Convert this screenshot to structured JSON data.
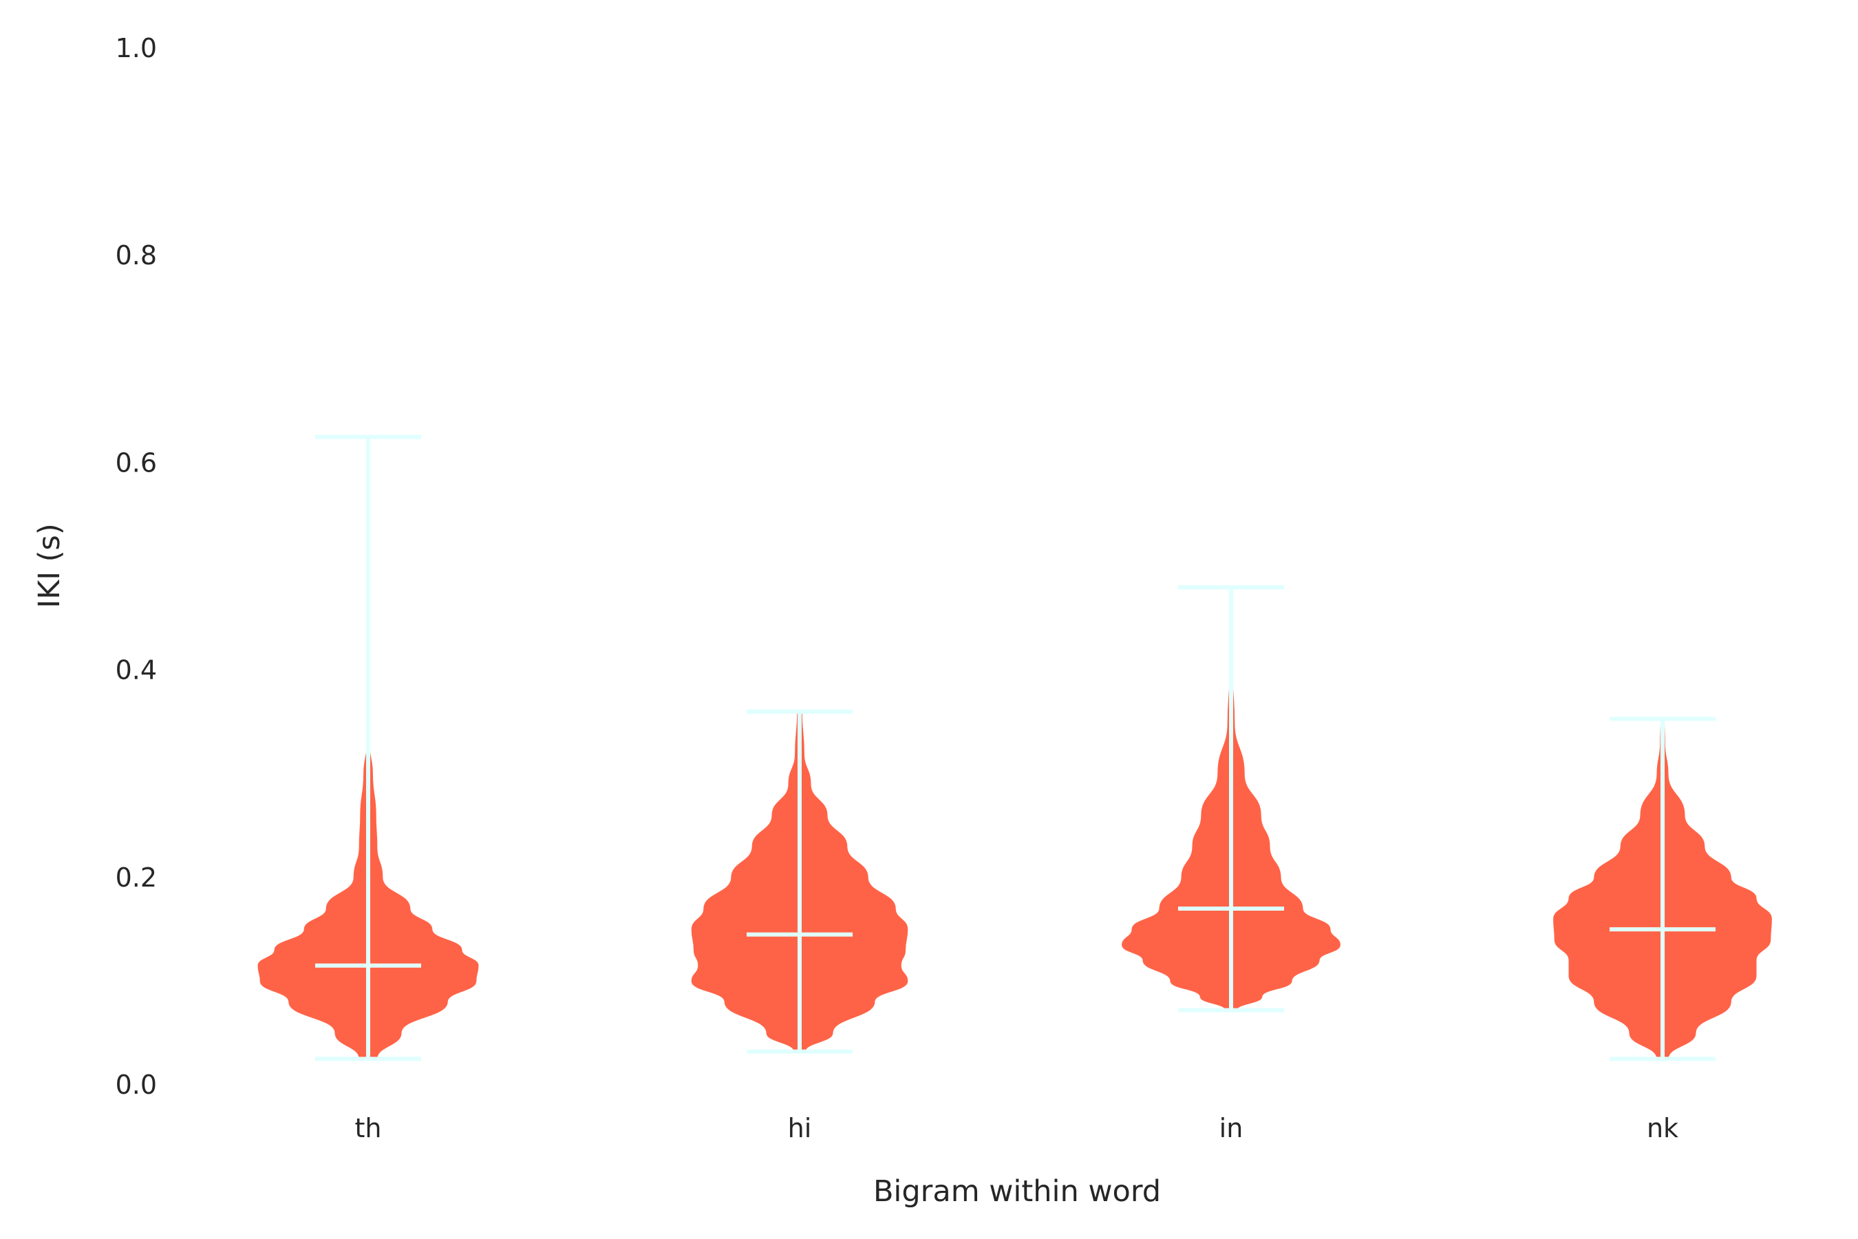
{
  "chart_data": {
    "type": "violin",
    "xlabel": "Bigram within word",
    "ylabel": "IKI (s)",
    "ylim": [
      0.0,
      1.0
    ],
    "yticks": [
      "0.0",
      "0.2",
      "0.4",
      "0.6",
      "0.8",
      "1.0"
    ],
    "grid": false,
    "colors": {
      "body": "#ff6347",
      "lines": "#e0ffff",
      "text": "#262626"
    },
    "categories": [
      "th",
      "hi",
      "in",
      "nk"
    ],
    "series": [
      {
        "category": "th",
        "min": 0.025,
        "median": 0.115,
        "max": 0.625,
        "profile": [
          [
            0.025,
            0.08
          ],
          [
            0.05,
            0.3
          ],
          [
            0.08,
            0.72
          ],
          [
            0.1,
            0.98
          ],
          [
            0.115,
            1.0
          ],
          [
            0.13,
            0.85
          ],
          [
            0.15,
            0.58
          ],
          [
            0.17,
            0.38
          ],
          [
            0.2,
            0.13
          ],
          [
            0.23,
            0.08
          ],
          [
            0.26,
            0.07
          ],
          [
            0.3,
            0.04
          ],
          [
            0.33,
            0.01
          ],
          [
            0.625,
            0.005
          ]
        ]
      },
      {
        "category": "hi",
        "min": 0.032,
        "median": 0.145,
        "max": 0.36,
        "profile": [
          [
            0.032,
            0.05
          ],
          [
            0.05,
            0.3
          ],
          [
            0.08,
            0.68
          ],
          [
            0.1,
            0.98
          ],
          [
            0.115,
            0.92
          ],
          [
            0.13,
            0.96
          ],
          [
            0.15,
            0.98
          ],
          [
            0.17,
            0.87
          ],
          [
            0.2,
            0.62
          ],
          [
            0.23,
            0.43
          ],
          [
            0.26,
            0.25
          ],
          [
            0.29,
            0.1
          ],
          [
            0.32,
            0.04
          ],
          [
            0.36,
            0.02
          ]
        ]
      },
      {
        "category": "in",
        "min": 0.072,
        "median": 0.17,
        "max": 0.48,
        "profile": [
          [
            0.072,
            0.05
          ],
          [
            0.085,
            0.28
          ],
          [
            0.1,
            0.55
          ],
          [
            0.12,
            0.8
          ],
          [
            0.135,
            0.99
          ],
          [
            0.15,
            0.9
          ],
          [
            0.17,
            0.65
          ],
          [
            0.2,
            0.45
          ],
          [
            0.23,
            0.35
          ],
          [
            0.26,
            0.27
          ],
          [
            0.3,
            0.12
          ],
          [
            0.35,
            0.03
          ],
          [
            0.4,
            0.01
          ],
          [
            0.48,
            0.004
          ]
        ]
      },
      {
        "category": "nk",
        "min": 0.025,
        "median": 0.15,
        "max": 0.353,
        "profile": [
          [
            0.025,
            0.05
          ],
          [
            0.05,
            0.3
          ],
          [
            0.08,
            0.62
          ],
          [
            0.105,
            0.85
          ],
          [
            0.12,
            0.85
          ],
          [
            0.14,
            0.98
          ],
          [
            0.16,
            0.99
          ],
          [
            0.18,
            0.85
          ],
          [
            0.2,
            0.62
          ],
          [
            0.23,
            0.38
          ],
          [
            0.26,
            0.2
          ],
          [
            0.3,
            0.05
          ],
          [
            0.33,
            0.02
          ],
          [
            0.353,
            0.015
          ]
        ]
      }
    ]
  }
}
